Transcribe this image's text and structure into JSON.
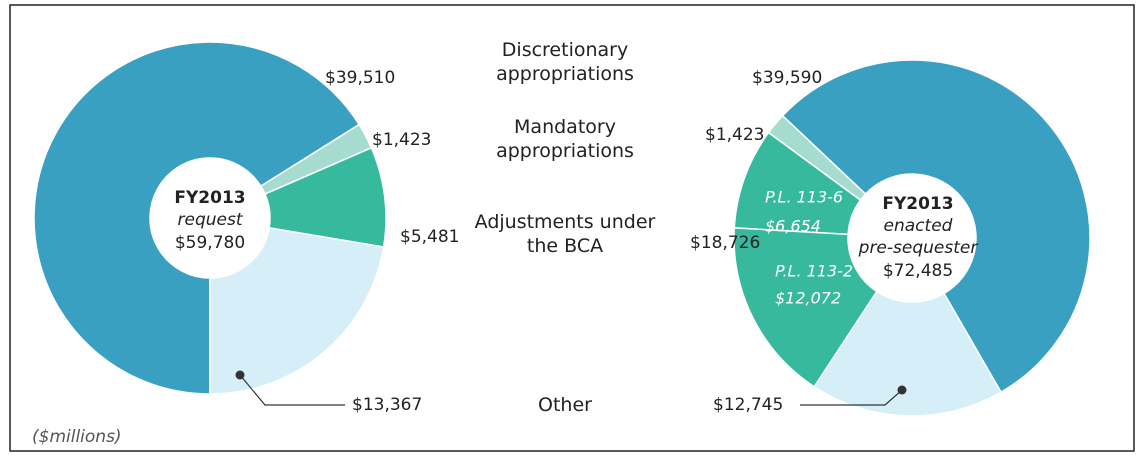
{
  "chart_data": [
    {
      "type": "pie",
      "donut": true,
      "center_title": "FY2013",
      "center_subtitle": "request",
      "total": 59780,
      "total_label": "$59,780",
      "categories": [
        "Discretionary appropriations",
        "Mandatory appropriations",
        "Adjustments under the BCA",
        "Other"
      ],
      "values": [
        39510,
        1423,
        5481,
        13367
      ],
      "value_labels": [
        "$39,510",
        "$1,423",
        "$5,481",
        "$13,367"
      ],
      "colors": [
        "#3aa0c2",
        "#a6dbd0",
        "#37b99e",
        "#d5eef7"
      ],
      "start_angle": 180,
      "direction": "clockwise"
    },
    {
      "type": "pie",
      "donut": true,
      "center_title": "FY2013",
      "center_subtitle": "enacted",
      "center_subtitle2": "pre-sequester",
      "total": 72485,
      "total_label": "$72,485",
      "segment_labels": [
        null,
        null,
        "P.L. 113-6",
        "P.L. 113-2",
        null
      ],
      "values": [
        39590,
        1423,
        6654,
        12072,
        12745
      ],
      "value_labels": [
        "$39,590",
        "$1,423",
        "$6,654",
        "$12,072",
        "$12,745"
      ],
      "group_total": 18726,
      "group_total_label": "$18,726",
      "colors": [
        "#3aa0c2",
        "#a6dbd0",
        "#37b99e",
        "#37b99e",
        "#d5eef7"
      ],
      "start_angle": 150,
      "direction": "counterclockwise"
    }
  ],
  "note": "($millions)"
}
